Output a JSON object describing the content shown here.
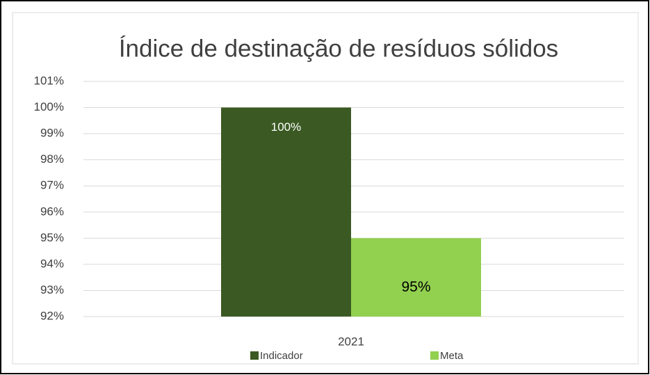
{
  "chart_data": {
    "type": "bar",
    "title": "Índice de destinação de resíduos sólidos",
    "categories": [
      "2021"
    ],
    "series": [
      {
        "name": "Indicador",
        "color": "#3b5a23",
        "values": [
          100
        ],
        "value_labels": [
          "100%"
        ]
      },
      {
        "name": "Meta",
        "color": "#92d050",
        "values": [
          95
        ],
        "value_labels": [
          "95%"
        ]
      }
    ],
    "ylim": [
      92,
      101
    ],
    "yticks": [
      {
        "value": 92,
        "label": "92%"
      },
      {
        "value": 93,
        "label": "93%"
      },
      {
        "value": 94,
        "label": "94%"
      },
      {
        "value": 95,
        "label": "95%"
      },
      {
        "value": 96,
        "label": "96%"
      },
      {
        "value": 97,
        "label": "97%"
      },
      {
        "value": 98,
        "label": "98%"
      },
      {
        "value": 99,
        "label": "99%"
      },
      {
        "value": 100,
        "label": "100%"
      },
      {
        "value": 101,
        "label": "101%"
      }
    ],
    "grid": true,
    "legend": "bottom"
  }
}
